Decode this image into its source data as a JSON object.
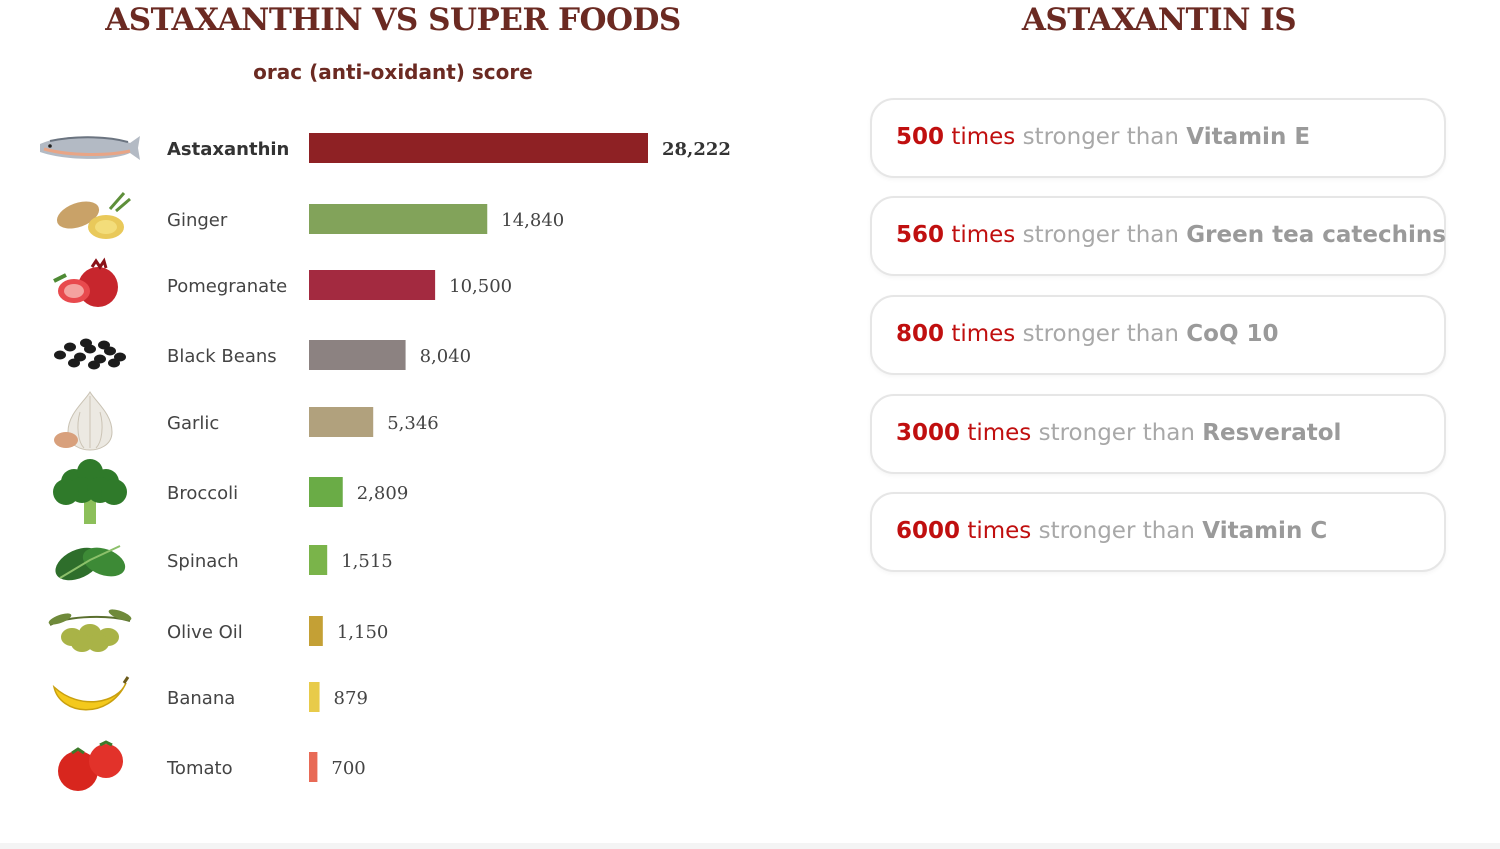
{
  "left_panel": {
    "title": "ASTAXANTHIN VS SUPER FOODS",
    "subtitle": "orac (anti-oxidant) score"
  },
  "right_panel": {
    "title": "ASTAXANTIN IS",
    "comparisons": [
      {
        "factor": "500",
        "times": "times",
        "text": "stronger than",
        "target": "Vitamin E"
      },
      {
        "factor": "560",
        "times": "times",
        "text": "stronger than",
        "target": "Green tea catechins"
      },
      {
        "factor": "800",
        "times": "times",
        "text": "stronger than",
        "target": "CoQ 10"
      },
      {
        "factor": "3000",
        "times": "times",
        "text": "stronger than",
        "target": "Resveratol"
      },
      {
        "factor": "6000",
        "times": "times",
        "text": "stronger than",
        "target": "Vitamin C"
      }
    ]
  },
  "chart_data": {
    "type": "bar",
    "orientation": "horizontal",
    "title": "ASTAXANTHIN VS SUPER FOODS",
    "subtitle": "orac (anti-oxidant) score",
    "xlabel": "",
    "ylabel": "",
    "grid": false,
    "categories": [
      "Astaxanthin",
      "Ginger",
      "Pomegranate",
      "Black Beans",
      "Garlic",
      "Broccoli",
      "Spinach",
      "Olive Oil",
      "Banana",
      "Tomato"
    ],
    "values": [
      28222,
      14840,
      10500,
      8040,
      5346,
      2809,
      1515,
      1150,
      879,
      700
    ],
    "value_labels": [
      "28,222",
      "14,840",
      "10,500",
      "8,040",
      "5,346",
      "2,809",
      "1,515",
      "1,150",
      "879",
      "700"
    ],
    "colors": [
      "#8e2124",
      "#82a35a",
      "#a32a40",
      "#8c8281",
      "#b1a17d",
      "#6aac46",
      "#7ab44a",
      "#c4a035",
      "#e8cb4a",
      "#e86a56"
    ],
    "icons": [
      "salmon-icon",
      "ginger-icon",
      "pomegranate-icon",
      "black-beans-icon",
      "garlic-icon",
      "broccoli-icon",
      "spinach-icon",
      "olives-icon",
      "banana-icon",
      "tomato-icon"
    ]
  }
}
